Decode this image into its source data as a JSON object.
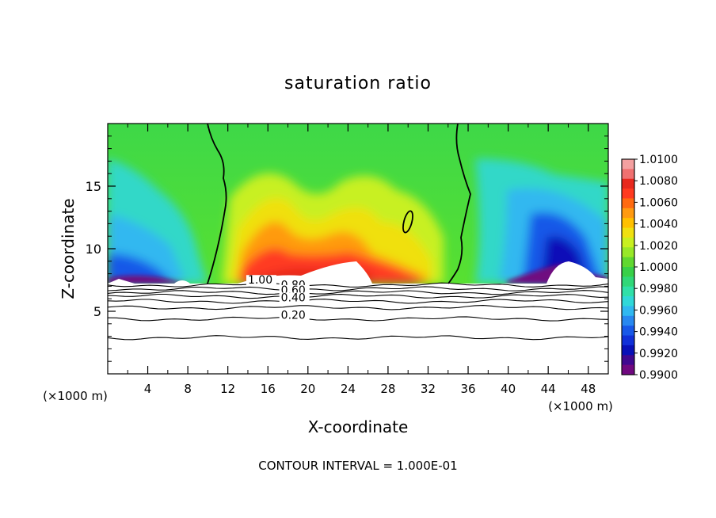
{
  "chart_data": {
    "type": "heatmap",
    "title": "saturation ratio",
    "xlabel": "X-coordinate",
    "ylabel": "Z-coordinate",
    "x_unit_label": "(×1000 m)",
    "y_unit_label": "(×1000 m)",
    "xlim": [
      0,
      50
    ],
    "ylim": [
      0,
      20
    ],
    "x_ticks": [
      4,
      8,
      12,
      16,
      20,
      24,
      28,
      32,
      36,
      40,
      44,
      48
    ],
    "y_ticks": [
      5,
      10,
      15
    ],
    "footer": "CONTOUR INTERVAL = 1.000E-01",
    "colorbar": {
      "labels": [
        "1.0100",
        "1.0080",
        "1.0060",
        "1.0040",
        "1.0020",
        "1.0000",
        "0.9980",
        "0.9960",
        "0.9940",
        "0.9920",
        "0.9900"
      ],
      "range": [
        0.99,
        1.01
      ],
      "colors": [
        "#f4a0a0",
        "#f07070",
        "#e8281e",
        "#ff3a20",
        "#ff6a10",
        "#ff9a10",
        "#ffc000",
        "#f0e010",
        "#c8f020",
        "#98e828",
        "#60d830",
        "#38d048",
        "#30d878",
        "#30e0a8",
        "#30d8d8",
        "#30b8f0",
        "#2888f0",
        "#1858e8",
        "#1030d8",
        "#0810b8",
        "#400890",
        "#700880"
      ]
    },
    "contour_labels": [
      {
        "text": "1.00",
        "x": 14.0,
        "z": 7.2
      },
      {
        "text": "0.80",
        "x": 17.3,
        "z": 6.8
      },
      {
        "text": "0.60",
        "x": 17.3,
        "z": 6.4
      },
      {
        "text": "0.40",
        "x": 17.3,
        "z": 5.8
      },
      {
        "text": "0.20",
        "x": 17.3,
        "z": 4.4
      }
    ],
    "contour_levels_z": [
      7.1,
      6.8,
      6.5,
      6.2,
      5.8,
      5.3,
      4.4,
      2.9
    ],
    "cloud_base_z": 7.3,
    "supersaturated_contour_x": [
      [
        10,
        11,
        12.3,
        11.5
      ],
      [
        35,
        34.2,
        35.5,
        34.8
      ]
    ]
  }
}
